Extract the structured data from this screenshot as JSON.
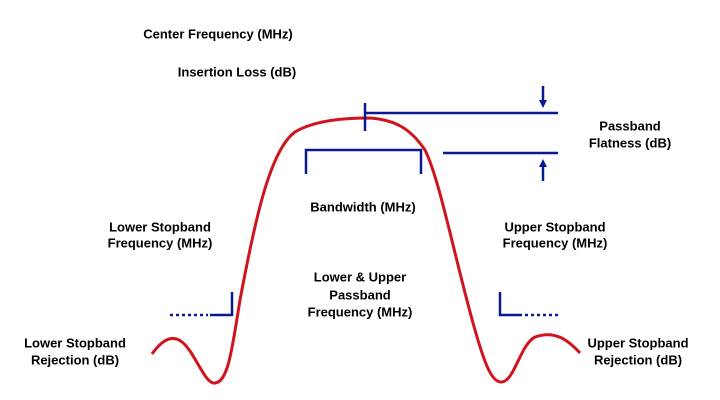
{
  "labels": {
    "center_frequency": "Center Frequency (MHz)",
    "insertion_loss": "Insertion Loss (dB)",
    "passband_flatness": [
      "Passband",
      "Flatness (dB)"
    ],
    "bandwidth": "Bandwidth (MHz)",
    "lower_stopband_frequency": [
      "Lower Stopband",
      "Frequency (MHz)"
    ],
    "upper_stopband_frequency": [
      "Upper Stopband",
      "Frequency (MHz)"
    ],
    "passband_frequency": [
      "Lower & Upper",
      "Passband",
      "Frequency (MHz)"
    ],
    "lower_stopband_rejection": [
      "Lower Stopband",
      "Rejection (dB)"
    ],
    "upper_stopband_rejection": [
      "Upper Stopband",
      "Rejection (dB)"
    ]
  }
}
